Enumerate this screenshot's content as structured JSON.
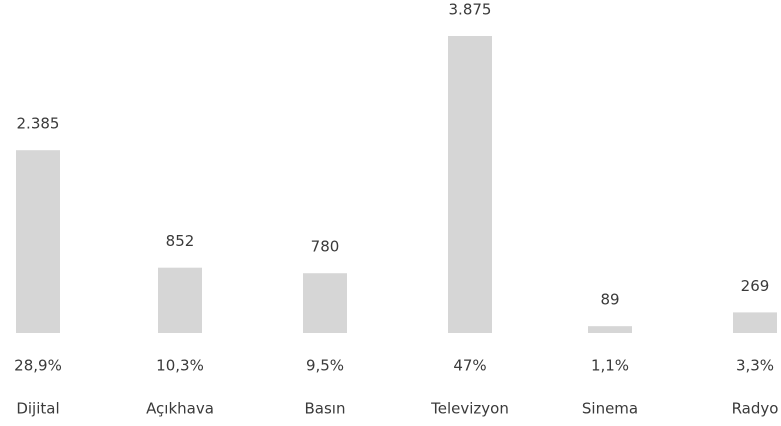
{
  "chart_data": {
    "type": "bar",
    "categories": [
      "Dijital",
      "Açıkhava",
      "Basın",
      "Televizyon",
      "Sinema",
      "Radyo"
    ],
    "values": [
      2385,
      852,
      780,
      3875,
      89,
      269
    ],
    "value_labels": [
      "2.385",
      "852",
      "780",
      "3.875",
      "89",
      "269"
    ],
    "shares": [
      28.9,
      10.3,
      9.5,
      47,
      1.1,
      3.3
    ],
    "share_labels": [
      "28,9%",
      "10,3%",
      "9,5%",
      "47%",
      "1,1%",
      "3,3%"
    ],
    "color": "#d6d6d6"
  }
}
